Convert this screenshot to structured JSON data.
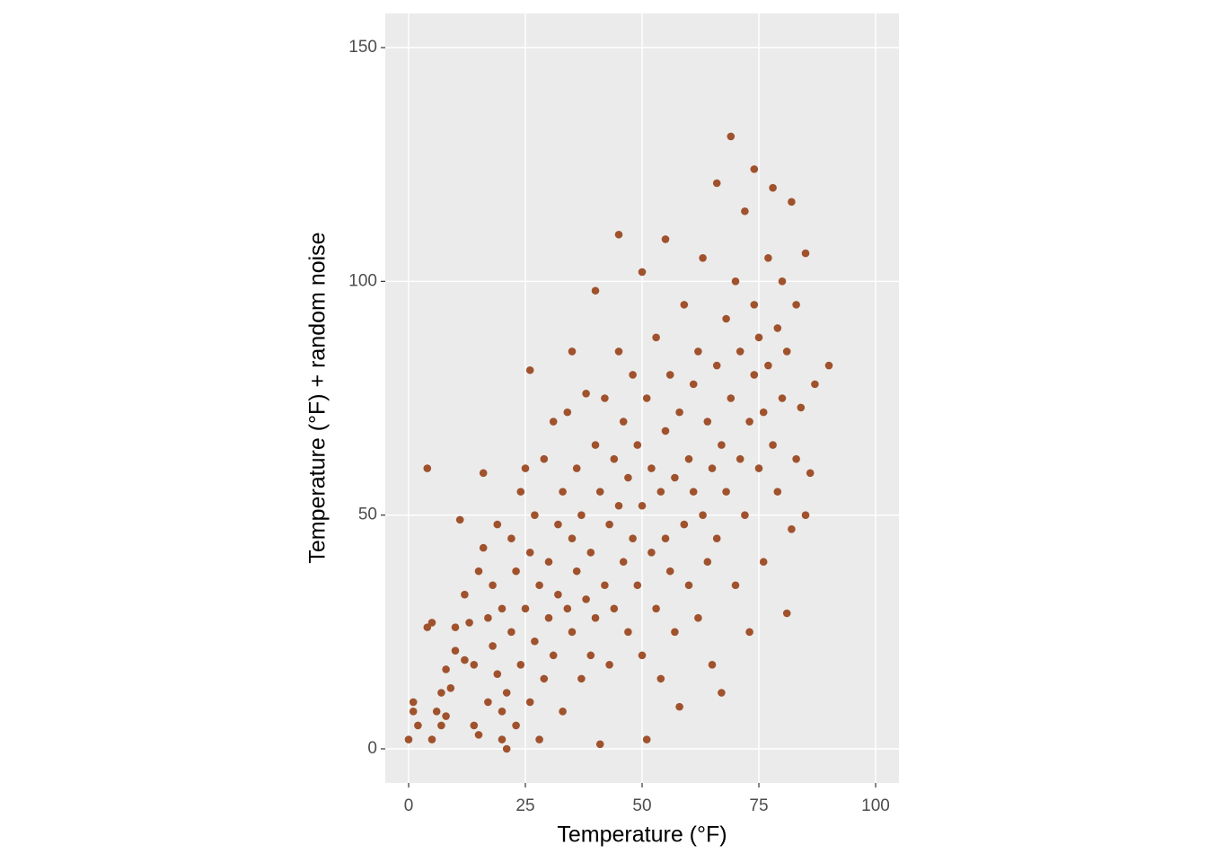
{
  "chart_data": {
    "type": "scatter",
    "xlabel": "Temperature (°F)",
    "ylabel": "Temperature (°F) + random noise",
    "xlim": [
      -5,
      105
    ],
    "ylim": [
      -7.3,
      157.3
    ],
    "xticks": [
      0,
      25,
      50,
      75,
      100
    ],
    "yticks": [
      0,
      50,
      100,
      150
    ],
    "grid": true,
    "color": "#a0522d",
    "background": "#ebebeb",
    "x": [
      0,
      1,
      1,
      2,
      4,
      4,
      5,
      5,
      6,
      7,
      7,
      8,
      8,
      9,
      10,
      10,
      11,
      12,
      12,
      13,
      14,
      14,
      15,
      15,
      16,
      16,
      17,
      17,
      18,
      18,
      19,
      19,
      20,
      20,
      20,
      21,
      21,
      22,
      22,
      23,
      23,
      24,
      24,
      25,
      25,
      26,
      26,
      26,
      27,
      27,
      28,
      28,
      29,
      29,
      30,
      30,
      31,
      31,
      32,
      32,
      33,
      33,
      34,
      34,
      35,
      35,
      35,
      36,
      36,
      37,
      37,
      38,
      38,
      39,
      39,
      40,
      40,
      40,
      41,
      41,
      42,
      42,
      43,
      43,
      44,
      44,
      45,
      45,
      45,
      46,
      46,
      47,
      47,
      48,
      48,
      49,
      49,
      50,
      50,
      50,
      51,
      51,
      52,
      52,
      53,
      53,
      54,
      54,
      55,
      55,
      55,
      56,
      56,
      57,
      57,
      58,
      58,
      59,
      59,
      60,
      60,
      61,
      61,
      62,
      62,
      63,
      63,
      64,
      64,
      65,
      65,
      66,
      66,
      66,
      67,
      67,
      68,
      68,
      69,
      69,
      70,
      70,
      71,
      71,
      72,
      72,
      73,
      73,
      74,
      74,
      74,
      75,
      75,
      76,
      76,
      77,
      77,
      78,
      78,
      79,
      79,
      80,
      80,
      81,
      81,
      82,
      82,
      83,
      83,
      84,
      85,
      85,
      86,
      87,
      90
    ],
    "y": [
      2,
      10,
      8,
      5,
      60,
      26,
      27,
      2,
      8,
      5,
      12,
      7,
      17,
      13,
      21,
      26,
      49,
      33,
      19,
      27,
      18,
      5,
      3,
      38,
      59,
      43,
      28,
      10,
      22,
      35,
      48,
      16,
      2,
      8,
      30,
      0,
      12,
      45,
      25,
      5,
      38,
      18,
      55,
      60,
      30,
      81,
      10,
      42,
      23,
      50,
      35,
      2,
      62,
      15,
      40,
      28,
      70,
      20,
      48,
      33,
      8,
      55,
      30,
      72,
      85,
      45,
      25,
      38,
      60,
      15,
      50,
      76,
      32,
      42,
      20,
      98,
      65,
      28,
      55,
      1,
      35,
      75,
      48,
      18,
      62,
      30,
      110,
      85,
      52,
      40,
      70,
      25,
      58,
      80,
      45,
      35,
      65,
      102,
      52,
      20,
      2,
      75,
      42,
      60,
      30,
      88,
      55,
      15,
      109,
      68,
      45,
      38,
      80,
      25,
      58,
      9,
      72,
      48,
      95,
      62,
      35,
      55,
      78,
      28,
      85,
      105,
      50,
      40,
      70,
      60,
      18,
      121,
      82,
      45,
      12,
      65,
      92,
      55,
      131,
      75,
      35,
      100,
      62,
      85,
      50,
      115,
      70,
      25,
      124,
      80,
      95,
      60,
      88,
      72,
      40,
      105,
      82,
      65,
      120,
      90,
      55,
      75,
      100,
      29,
      85,
      117,
      47,
      62,
      95,
      73,
      106,
      50,
      59,
      78,
      82
    ]
  }
}
